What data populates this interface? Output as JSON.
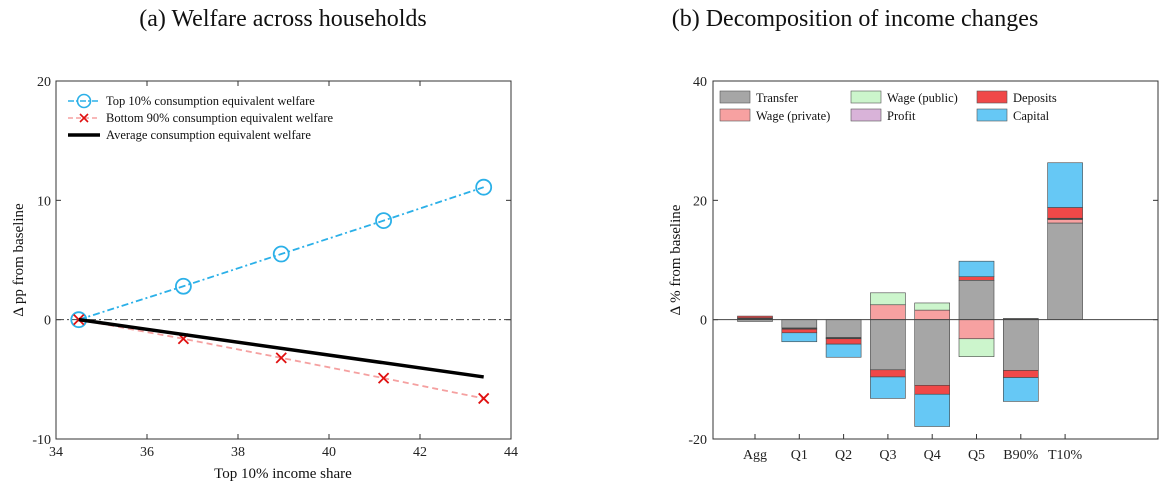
{
  "chart_data": [
    {
      "type": "line",
      "title": "(a) Welfare across households",
      "xlabel": "Top 10% income share",
      "ylabel": "Δ pp from baseline",
      "xlim": [
        34,
        44
      ],
      "ylim": [
        -10,
        20
      ],
      "xticks": [
        "34",
        "36",
        "38",
        "40",
        "42",
        "44"
      ],
      "yticks": [
        "-10",
        "0",
        "10",
        "20"
      ],
      "legend_position": "top-left",
      "baseline": 0,
      "series": [
        {
          "name": "Top 10% consumption equivalent welfare",
          "color": "#2bb0e8",
          "style": "dash-dot-circle",
          "x": [
            34.5,
            36.8,
            38.95,
            41.2,
            43.4
          ],
          "y": [
            0,
            2.8,
            5.5,
            8.3,
            11.1
          ]
        },
        {
          "name": "Bottom 90% consumption equivalent welfare",
          "color": "#f5a0a0",
          "marker_color": "#e01010",
          "style": "dashed-cross",
          "x": [
            34.5,
            36.8,
            38.95,
            41.2,
            43.4
          ],
          "y": [
            0,
            -1.6,
            -3.2,
            -4.9,
            -6.6
          ]
        },
        {
          "name": "Average consumption equivalent welfare",
          "color": "#000000",
          "style": "solid",
          "x": [
            34.5,
            43.4
          ],
          "y": [
            0,
            -4.8
          ]
        }
      ]
    },
    {
      "type": "bar",
      "stacked": true,
      "title": "(b) Decomposition of income changes",
      "xlabel": "",
      "ylabel": "Δ % from baseline",
      "ylim": [
        -20,
        40
      ],
      "yticks": [
        "-20",
        "0",
        "20",
        "40"
      ],
      "legend_position": "top",
      "categories": [
        "Agg",
        "Q1",
        "Q2",
        "Q3",
        "Q4",
        "Q5",
        "B90%",
        "T10%"
      ],
      "series": [
        {
          "name": "Transfer",
          "color": "#a6a6a6",
          "values": [
            -0.3,
            -1.4,
            -3.0,
            -8.4,
            -11.0,
            6.6,
            -8.5,
            16.2
          ]
        },
        {
          "name": "Wage (private)",
          "color": "#f7a1a1",
          "values": [
            0.1,
            -0.1,
            -0.1,
            2.5,
            1.6,
            -3.2,
            0.1,
            0.6
          ]
        },
        {
          "name": "Wage (public)",
          "color": "#ccf5cc",
          "values": [
            0.1,
            -0.1,
            -0.1,
            2.0,
            1.2,
            -3.0,
            0.1,
            0.1
          ]
        },
        {
          "name": "Profit",
          "color": "#d9b3d9",
          "values": [
            0.1,
            0.0,
            0.0,
            0.0,
            0.0,
            0.0,
            0.0,
            0.1
          ]
        },
        {
          "name": "Deposits",
          "color": "#f04848",
          "values": [
            0.3,
            -0.6,
            -0.9,
            -1.2,
            -1.5,
            0.6,
            -1.2,
            1.8
          ]
        },
        {
          "name": "Capital",
          "color": "#66c8f5",
          "values": [
            0.0,
            -1.5,
            -2.2,
            -3.6,
            -5.4,
            2.6,
            -4.0,
            7.5
          ]
        }
      ]
    }
  ]
}
